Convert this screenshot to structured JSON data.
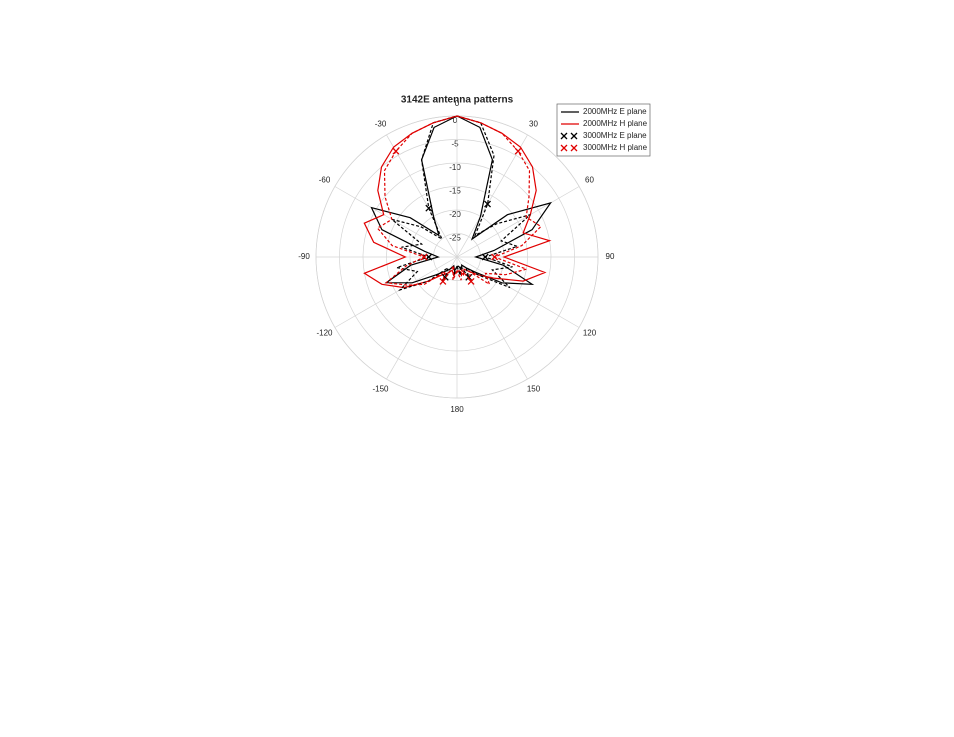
{
  "chart_data": {
    "type": "polar",
    "title": "3142E antenna patterns",
    "theta": [
      -180,
      -170,
      -160,
      -150,
      -140,
      -130,
      -120,
      -110,
      -100,
      -90,
      -80,
      -70,
      -60,
      -50,
      -40,
      -30,
      -20,
      -10,
      0,
      10,
      20,
      30,
      40,
      50,
      60,
      70,
      80,
      90,
      100,
      110,
      120,
      130,
      140,
      150,
      160,
      170
    ],
    "rlim": [
      -30,
      0
    ],
    "rticks": [
      -25,
      -20,
      -15,
      -10,
      -5,
      0
    ],
    "thetaticks": [
      0,
      30,
      60,
      90,
      120,
      150,
      180,
      -150,
      -120,
      -90,
      -60,
      -30
    ],
    "grid": true,
    "legend": "upper right",
    "series": [
      {
        "name": "2000MHz E plane",
        "color": "#000000",
        "dash": false,
        "marker": false,
        "values": [
          -28,
          -27,
          -28,
          -27,
          -26,
          -24,
          -19,
          -14,
          -20,
          -26,
          -23,
          -13,
          -9,
          -17,
          -24,
          -20,
          -8,
          -2,
          0,
          -2,
          -8,
          -20,
          -25,
          -16,
          -7,
          -13,
          -22,
          -26,
          -20,
          -13,
          -19,
          -25,
          -27,
          -28,
          -27,
          -28
        ]
      },
      {
        "name": "2000MHz H plane",
        "color": "#e00000",
        "dash": false,
        "marker": false,
        "values": [
          -27,
          -26,
          -27,
          -26,
          -25,
          -22,
          -17,
          -13,
          -10,
          -19,
          -12,
          -9,
          -12,
          -8,
          -5,
          -3,
          -2,
          -1,
          0,
          -1,
          -2,
          -3,
          -5,
          -8,
          -12,
          -15,
          -10,
          -20,
          -11,
          -15,
          -21,
          -24,
          -26,
          -27,
          -26,
          -27
        ]
      },
      {
        "name": "3000MHz E plane",
        "color": "#000000",
        "dash": true,
        "marker": true,
        "values": [
          -28,
          -26,
          -28,
          -25,
          -27,
          -22,
          -16,
          -21,
          -17,
          -24,
          -18,
          -22,
          -14,
          -20,
          -25,
          -18,
          -8,
          -1,
          0,
          -1,
          -7,
          -17,
          -24,
          -19,
          -12,
          -20,
          -17,
          -24,
          -18,
          -22,
          -17,
          -24,
          -27,
          -25,
          -28,
          -26
        ]
      },
      {
        "name": "3000MHz H plane",
        "color": "#e00000",
        "dash": true,
        "marker": true,
        "values": [
          -27,
          -25,
          -28,
          -24,
          -26,
          -21,
          -18,
          -14,
          -19,
          -23,
          -16,
          -12,
          -14,
          -10,
          -6,
          -4,
          -2,
          -1,
          0,
          -1,
          -2,
          -4,
          -6,
          -10,
          -13,
          -11,
          -16,
          -22,
          -15,
          -19,
          -23,
          -21,
          -26,
          -24,
          -27,
          -25
        ]
      }
    ]
  }
}
